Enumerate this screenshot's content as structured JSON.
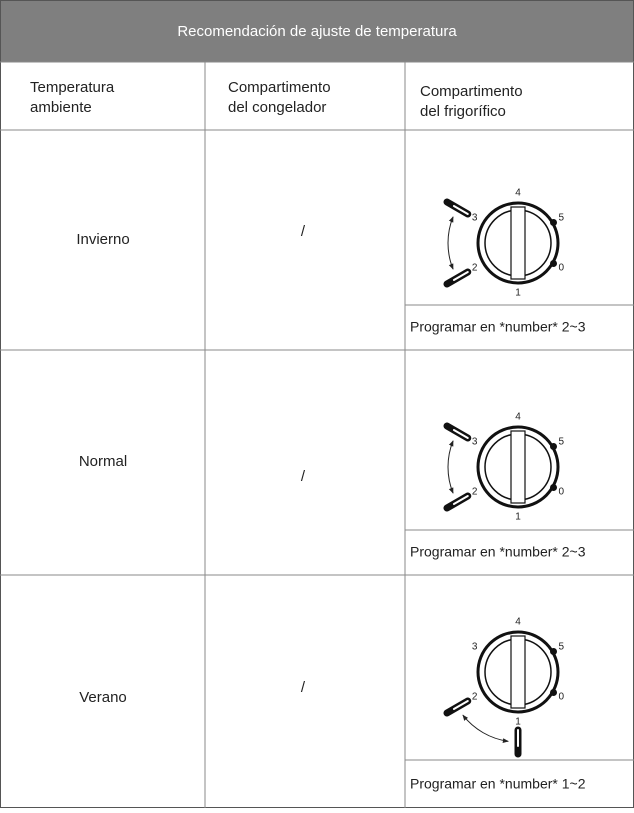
{
  "header": {
    "title": "Recomendación de ajuste de temperatura"
  },
  "table": {
    "columns": [
      [
        "Temperatura",
        "ambiente"
      ],
      [
        "Compartimento",
        "del congelador"
      ],
      [
        "Compartimento",
        "del frigorífico"
      ]
    ],
    "rows": [
      {
        "season": "Invierno",
        "freezer": "/",
        "setting": "Programar en *number* 2~3"
      },
      {
        "season": "Normal",
        "freezer": "/",
        "setting": "Programar en *number* 2~3"
      },
      {
        "season": "Verano",
        "freezer": "/",
        "setting": "Programar en *number* 1~2"
      }
    ]
  },
  "dial_numbers": [
    "0",
    "1",
    "2",
    "3",
    "4",
    "5"
  ]
}
